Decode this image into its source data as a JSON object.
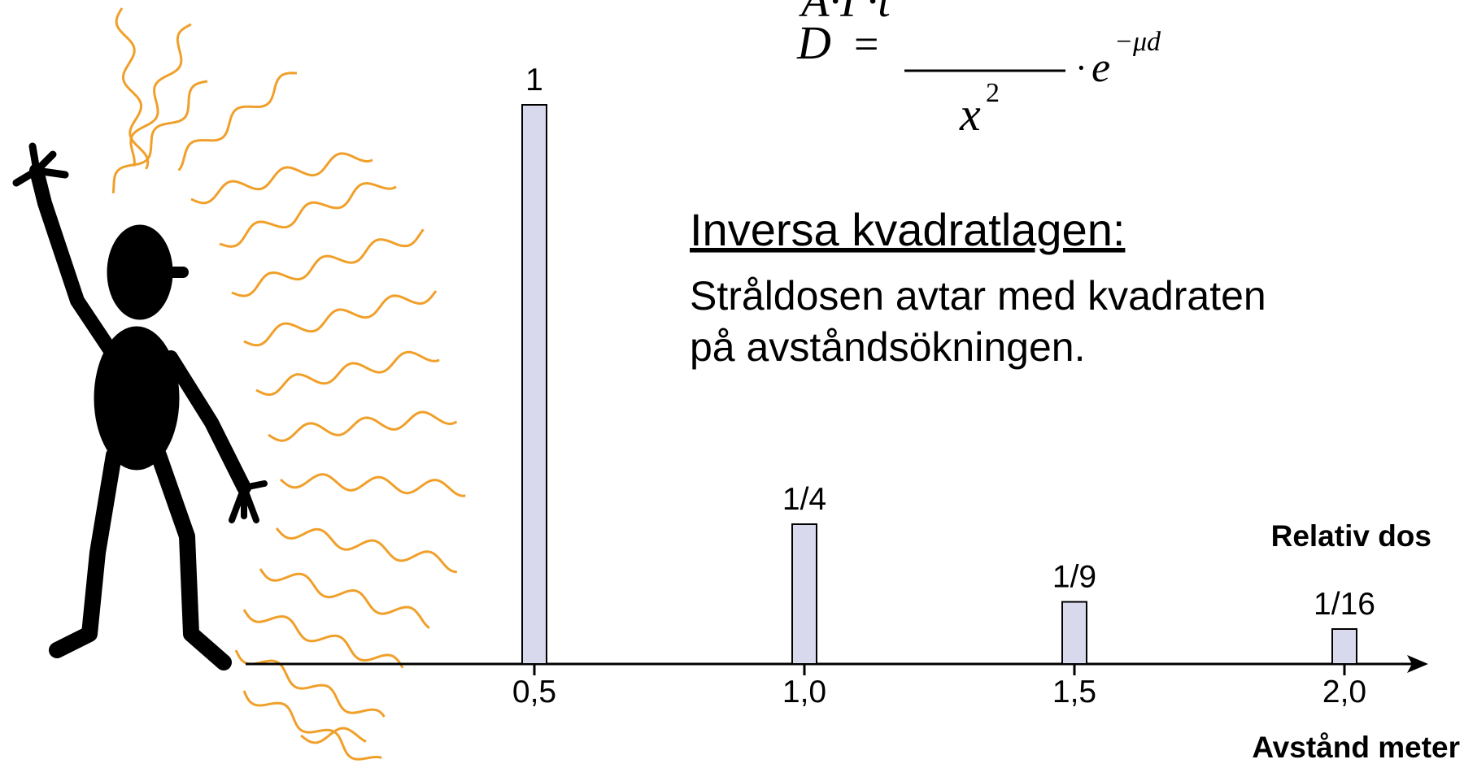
{
  "chart_data": {
    "type": "bar",
    "categories": [
      "0,5",
      "1,0",
      "1,5",
      "2,0"
    ],
    "values": [
      1,
      0.25,
      0.1111,
      0.0625
    ],
    "value_labels": [
      "1",
      "1/4",
      "1/9",
      "1/16"
    ],
    "color": "#d9d9ee",
    "y_label": "Relativ dos",
    "x_label": "Avstånd meter",
    "formula": {
      "lhs": "D",
      "equals": "=",
      "numerator": "A·Γ·t",
      "denominator": "x",
      "denominator_exponent": "2",
      "factor": "·",
      "base": "e",
      "exponent": "−μd"
    },
    "heading": "Inversa kvadratlagen:",
    "text_lines": [
      "Stråldosen avtar med kvadraten",
      "på avståndsökningen."
    ]
  }
}
